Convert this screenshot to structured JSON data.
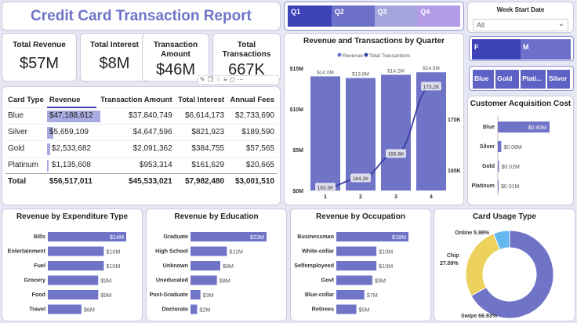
{
  "report_title": "Credit Card Transaction Report",
  "kpis": [
    {
      "label": "Total Revenue",
      "value": "$57M"
    },
    {
      "label": "Total Interest",
      "value": "$8M"
    },
    {
      "label": "Transaction Amount",
      "value": "$46M"
    },
    {
      "label": "Total Transactions",
      "value": "667K"
    }
  ],
  "quarter_slicer": {
    "items": [
      "Q1",
      "Q2",
      "Q3",
      "Q4"
    ],
    "colors": [
      "#3e44b8",
      "#6c70c8",
      "#a3a6dd",
      "#b49be6"
    ]
  },
  "week_filter": {
    "title": "Week Start Date",
    "value": "All"
  },
  "gender_slicer": {
    "items": [
      "F",
      "M"
    ]
  },
  "card_slicer": {
    "items": [
      "Blue",
      "Gold",
      "Plati...",
      "Silver"
    ]
  },
  "table": {
    "columns": [
      "Card Type",
      "Revenue",
      "Transaction Amount",
      "Total Interest",
      "Annual Fees"
    ],
    "rows": [
      {
        "card": "Blue",
        "revenue": "$47,188,612",
        "amount": "$37,840,749",
        "interest": "$6,614,173",
        "fees": "$2,733,690",
        "share": 1.0
      },
      {
        "card": "Silver",
        "revenue": "$5,659,109",
        "amount": "$4,647,596",
        "interest": "$821,923",
        "fees": "$189,590",
        "share": 0.12
      },
      {
        "card": "Gold",
        "revenue": "$2,533,682",
        "amount": "$2,091,362",
        "interest": "$384,755",
        "fees": "$57,565",
        "share": 0.054
      },
      {
        "card": "Platinum",
        "revenue": "$1,135,608",
        "amount": "$953,314",
        "interest": "$161,629",
        "fees": "$20,665",
        "share": 0.024
      }
    ],
    "total": {
      "card": "Total",
      "revenue": "$56,517,011",
      "amount": "$45,533,021",
      "interest": "$7,982,480",
      "fees": "$3,001,510"
    }
  },
  "chart_data": [
    {
      "type": "bar",
      "title": "Revenue and Transactions by Quarter",
      "legend": [
        "Revenue",
        "Total Transactions"
      ],
      "legend_position": "top",
      "categories": [
        "1",
        "2",
        "3",
        "4"
      ],
      "series": [
        {
          "name": "Revenue",
          "values": [
            14.0,
            13.8,
            14.2,
            14.5
          ],
          "labels": [
            "$14.0M",
            "$13.8M",
            "$14.2M",
            "$14.5M"
          ],
          "color": "#6f74c7"
        },
        {
          "name": "Total Transactions",
          "values": [
            163.3,
            164.2,
            166.6,
            173.2
          ],
          "labels": [
            "163.3K",
            "164.2K",
            "166.6K",
            "173.2K"
          ],
          "color": "#3a3fa0"
        }
      ],
      "ylim": [
        0,
        15
      ],
      "yticks": [
        "$0M",
        "$5M",
        "$10M",
        "$15M"
      ],
      "y2ticks": [
        "165K",
        "170K"
      ],
      "y2lim": [
        163,
        175
      ]
    },
    {
      "type": "bar",
      "title": "Customer Acquisition Cost",
      "categories": [
        "Blue",
        "Silver",
        "Gold",
        "Platinum"
      ],
      "values": [
        0.9,
        0.06,
        0.02,
        0.01
      ],
      "labels": [
        "$0.90M",
        "$0.06M",
        "$0.02M",
        "$0.01M"
      ]
    },
    {
      "type": "bar",
      "title": "Revenue by Expenditure Type",
      "categories": [
        "Bills",
        "Entertainment",
        "Fuel",
        "Grocery",
        "Food",
        "Travel"
      ],
      "values": [
        14,
        10,
        10,
        9,
        9,
        6
      ],
      "labels": [
        "$14M",
        "$10M",
        "$10M",
        "$9M",
        "$9M",
        "$6M"
      ]
    },
    {
      "type": "bar",
      "title": "Revenue by Education",
      "categories": [
        "Graduate",
        "High School",
        "Unknown",
        "Uneducated",
        "Post-Graduate",
        "Doctorate"
      ],
      "values": [
        23,
        11,
        9,
        8,
        3,
        2
      ],
      "labels": [
        "$23M",
        "$11M",
        "$9M",
        "$8M",
        "$3M",
        "$2M"
      ]
    },
    {
      "type": "bar",
      "title": "Revenue by Occupation",
      "categories": [
        "Businessman",
        "White-collar",
        "Selfemployeed",
        "Govt",
        "Blue-collar",
        "Retirees"
      ],
      "values": [
        18,
        10,
        10,
        9,
        7,
        5
      ],
      "labels": [
        "$18M",
        "$10M",
        "$10M",
        "$9M",
        "$7M",
        "$5M"
      ]
    },
    {
      "type": "pie",
      "title": "Card Usage Type",
      "categories": [
        "Swipe",
        "Chip",
        "Online"
      ],
      "values": [
        66.93,
        27.09,
        5.98
      ],
      "labels": [
        "Swipe 66.93%",
        "Chip 27.09%",
        "Online 5.98%"
      ],
      "colors": [
        "#6f74c7",
        "#ecd15c",
        "#66b6f0"
      ]
    }
  ]
}
